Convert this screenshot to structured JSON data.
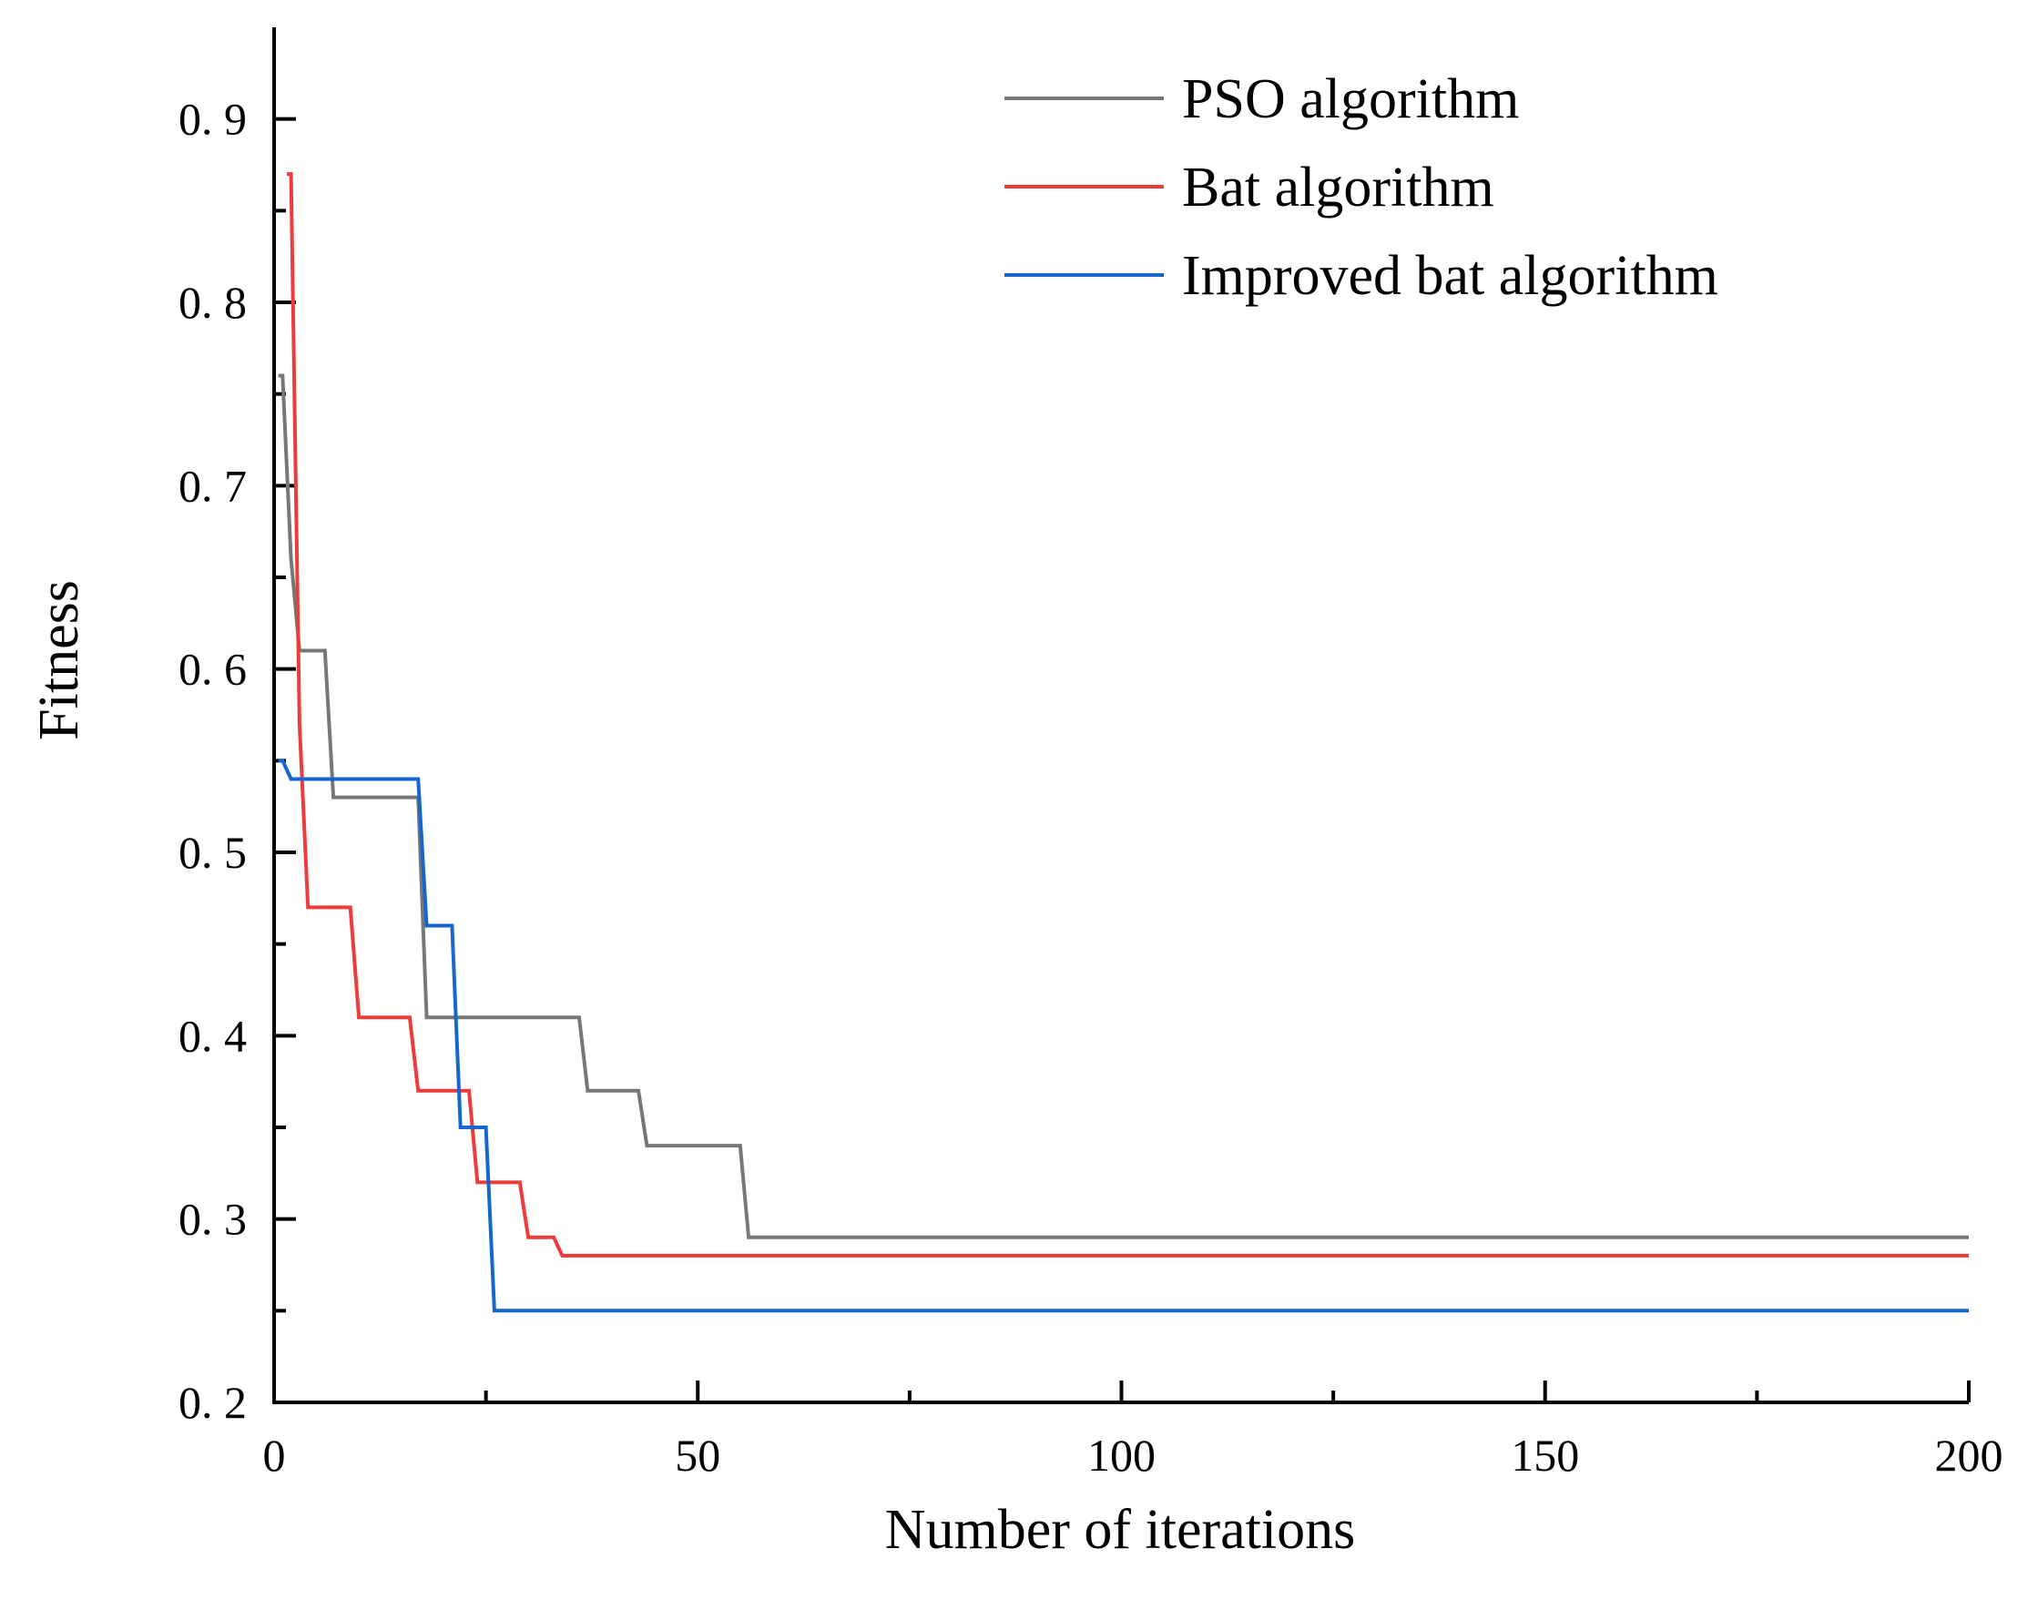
{
  "chart_data": {
    "type": "line",
    "title": "",
    "xlabel": "Number of iterations",
    "ylabel": "Fitness",
    "xlim": [
      0,
      200
    ],
    "ylim": [
      0.2,
      0.95
    ],
    "x_ticks": [
      0,
      50,
      100,
      150,
      200
    ],
    "x_minor_ticks": [
      25,
      75,
      125,
      175
    ],
    "y_ticks": [
      0.2,
      0.3,
      0.4,
      0.5,
      0.6,
      0.7,
      0.8,
      0.9
    ],
    "y_tick_labels": [
      "0. 2",
      "0. 3",
      "0. 4",
      "0. 5",
      "0. 6",
      "0. 7",
      "0. 8",
      "0. 9"
    ],
    "y_minor_ticks": [
      0.25,
      0.35,
      0.45,
      0.55,
      0.65,
      0.75,
      0.85
    ],
    "legend_position": "top-right",
    "series": [
      {
        "name": "PSO algorithm",
        "color": "#777777",
        "x": [
          0.5,
          1,
          2,
          3,
          6,
          7,
          17,
          18,
          36,
          37,
          43,
          44,
          55,
          56,
          200
        ],
        "y": [
          0.76,
          0.76,
          0.66,
          0.61,
          0.61,
          0.53,
          0.53,
          0.41,
          0.41,
          0.37,
          0.37,
          0.34,
          0.34,
          0.29,
          0.29
        ]
      },
      {
        "name": "Bat algorithm",
        "color": "#ee3b3b",
        "x": [
          1.5,
          2,
          3,
          4,
          9,
          10,
          16,
          17,
          23,
          24,
          29,
          30,
          33,
          34,
          200
        ],
        "y": [
          0.87,
          0.87,
          0.57,
          0.47,
          0.47,
          0.41,
          0.41,
          0.37,
          0.37,
          0.32,
          0.32,
          0.29,
          0.29,
          0.28,
          0.28
        ]
      },
      {
        "name": "Improved bat algorithm",
        "color": "#1666d0",
        "x": [
          0.5,
          1,
          2,
          17,
          18,
          21,
          22,
          25,
          26,
          200
        ],
        "y": [
          0.55,
          0.55,
          0.54,
          0.54,
          0.46,
          0.46,
          0.35,
          0.35,
          0.25,
          0.25
        ]
      }
    ]
  }
}
